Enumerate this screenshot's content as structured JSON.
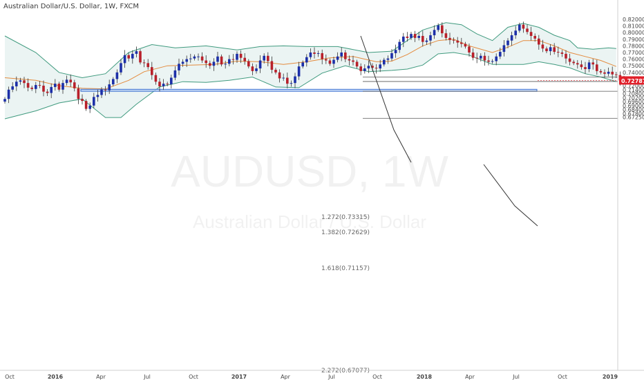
{
  "header": {
    "title": "Australian Dollar/U.S. Dollar, 1W, FXCM"
  },
  "watermark": {
    "symbol": "AUDUSD, 1W",
    "name": "Australian Dollar / U.S. Dollar"
  },
  "colors": {
    "bull": "#1c2fa8",
    "bear": "#b8202a",
    "band": "#3f9a7e",
    "band_fill": "#e8f2f1",
    "ma": "#e48a3c",
    "zone_fill": "#b9d2f4",
    "zone_stroke": "#3a6fd1",
    "price_tag": "#e0202a"
  },
  "price_axis": {
    "ticks": [
      "0.82000",
      "0.81000",
      "0.80000",
      "0.79000",
      "0.78000",
      "0.77000",
      "0.76000",
      "0.75000",
      "0.74000",
      "0.73000",
      "0.72000",
      "0.71400",
      "0.70800",
      "0.70200",
      "0.69600",
      "0.69000",
      "0.68400",
      "0.67800",
      "0.67250"
    ],
    "last_price": "0.72787"
  },
  "time_axis": {
    "labels": [
      "Oct",
      "2016",
      "Apr",
      "Jul",
      "Oct",
      "2017",
      "Apr",
      "Jul",
      "Oct",
      "2018",
      "Apr",
      "Jul",
      "Oct",
      "2019"
    ]
  },
  "fib_labels": {
    "l1272": "1.272(0.73315)",
    "l1382": "1.382(0.72629)",
    "l1618": "1.618(0.71157)",
    "l2272": "2.272(0.67077)"
  },
  "chart_data": {
    "type": "candlestick",
    "title": "Australian Dollar/U.S. Dollar, 1W, FXCM",
    "xlabel": "",
    "ylabel": "",
    "ylim": [
      0.6705,
      0.8245
    ],
    "x_range": [
      "2015-09-21",
      "2019-01-07"
    ],
    "x_ticks": [
      "Oct 2015",
      "2016",
      "Apr 2016",
      "Jul 2016",
      "Oct 2016",
      "2017",
      "Apr 2017",
      "Jul 2017",
      "Oct 2017",
      "2018",
      "Apr 2018",
      "Jul 2018",
      "Oct 2018",
      "2019"
    ],
    "close": [
      0.7,
      0.714,
      0.719,
      0.726,
      0.728,
      0.724,
      0.717,
      0.715,
      0.721,
      0.72,
      0.711,
      0.709,
      0.718,
      0.723,
      0.714,
      0.724,
      0.729,
      0.725,
      0.716,
      0.7,
      0.697,
      0.685,
      0.69,
      0.703,
      0.706,
      0.714,
      0.713,
      0.722,
      0.73,
      0.74,
      0.754,
      0.766,
      0.761,
      0.768,
      0.772,
      0.755,
      0.754,
      0.748,
      0.736,
      0.726,
      0.719,
      0.723,
      0.722,
      0.732,
      0.743,
      0.753,
      0.756,
      0.76,
      0.761,
      0.764,
      0.764,
      0.758,
      0.754,
      0.75,
      0.756,
      0.764,
      0.752,
      0.753,
      0.76,
      0.759,
      0.768,
      0.762,
      0.757,
      0.749,
      0.742,
      0.746,
      0.758,
      0.765,
      0.757,
      0.744,
      0.74,
      0.731,
      0.732,
      0.723,
      0.724,
      0.734,
      0.749,
      0.755,
      0.763,
      0.77,
      0.768,
      0.769,
      0.76,
      0.758,
      0.753,
      0.759,
      0.764,
      0.77,
      0.76,
      0.758,
      0.756,
      0.749,
      0.742,
      0.746,
      0.75,
      0.747,
      0.746,
      0.752,
      0.759,
      0.761,
      0.769,
      0.774,
      0.786,
      0.794,
      0.792,
      0.798,
      0.792,
      0.795,
      0.786,
      0.788,
      0.796,
      0.804,
      0.811,
      0.799,
      0.792,
      0.789,
      0.788,
      0.785,
      0.783,
      0.779,
      0.77,
      0.762,
      0.761,
      0.765,
      0.758,
      0.756,
      0.757,
      0.764,
      0.771,
      0.781,
      0.788,
      0.796,
      0.803,
      0.812,
      0.806,
      0.801,
      0.795,
      0.791,
      0.782,
      0.776,
      0.772,
      0.778,
      0.771,
      0.77,
      0.768,
      0.761,
      0.756,
      0.754,
      0.752,
      0.748,
      0.745,
      0.755,
      0.752,
      0.742,
      0.74,
      0.738,
      0.741,
      0.737,
      0.736,
      0.728,
      0.72787
    ],
    "series": [
      {
        "name": "Upper band",
        "points": [
          [
            0,
            0.795
          ],
          [
            8,
            0.77
          ],
          [
            14,
            0.74
          ],
          [
            20,
            0.732
          ],
          [
            26,
            0.738
          ],
          [
            32,
            0.77
          ],
          [
            38,
            0.782
          ],
          [
            44,
            0.777
          ],
          [
            52,
            0.78
          ],
          [
            60,
            0.774
          ],
          [
            66,
            0.779
          ],
          [
            72,
            0.78
          ],
          [
            78,
            0.779
          ],
          [
            86,
            0.779
          ],
          [
            94,
            0.77
          ],
          [
            100,
            0.772
          ],
          [
            104,
            0.788
          ],
          [
            108,
            0.804
          ],
          [
            114,
            0.815
          ],
          [
            118,
            0.812
          ],
          [
            122,
            0.798
          ],
          [
            126,
            0.788
          ],
          [
            130,
            0.808
          ],
          [
            134,
            0.814
          ],
          [
            138,
            0.808
          ],
          [
            142,
            0.796
          ],
          [
            146,
            0.788
          ],
          [
            148,
            0.777
          ],
          [
            152,
            0.775
          ],
          [
            156,
            0.777
          ],
          [
            158,
            0.776
          ]
        ]
      },
      {
        "name": "Middle band",
        "points": [
          [
            0,
            0.732
          ],
          [
            8,
            0.728
          ],
          [
            14,
            0.72
          ],
          [
            20,
            0.716
          ],
          [
            26,
            0.715
          ],
          [
            32,
            0.728
          ],
          [
            36,
            0.741
          ],
          [
            42,
            0.75
          ],
          [
            48,
            0.751
          ],
          [
            54,
            0.752
          ],
          [
            60,
            0.757
          ],
          [
            66,
            0.756
          ],
          [
            72,
            0.752
          ],
          [
            78,
            0.756
          ],
          [
            84,
            0.762
          ],
          [
            90,
            0.764
          ],
          [
            96,
            0.756
          ],
          [
            100,
            0.757
          ],
          [
            104,
            0.767
          ],
          [
            108,
            0.78
          ],
          [
            112,
            0.788
          ],
          [
            116,
            0.79
          ],
          [
            120,
            0.78
          ],
          [
            126,
            0.77
          ],
          [
            130,
            0.778
          ],
          [
            134,
            0.788
          ],
          [
            138,
            0.788
          ],
          [
            142,
            0.78
          ],
          [
            146,
            0.77
          ],
          [
            150,
            0.764
          ],
          [
            154,
            0.758
          ],
          [
            158,
            0.749
          ]
        ]
      },
      {
        "name": "Lower band",
        "points": [
          [
            0,
            0.67
          ],
          [
            8,
            0.682
          ],
          [
            14,
            0.694
          ],
          [
            20,
            0.7
          ],
          [
            26,
            0.672
          ],
          [
            30,
            0.672
          ],
          [
            34,
            0.692
          ],
          [
            40,
            0.718
          ],
          [
            46,
            0.726
          ],
          [
            52,
            0.725
          ],
          [
            58,
            0.728
          ],
          [
            64,
            0.733
          ],
          [
            70,
            0.718
          ],
          [
            76,
            0.717
          ],
          [
            82,
            0.739
          ],
          [
            88,
            0.75
          ],
          [
            94,
            0.741
          ],
          [
            100,
            0.743
          ],
          [
            104,
            0.745
          ],
          [
            108,
            0.751
          ],
          [
            112,
            0.768
          ],
          [
            116,
            0.77
          ],
          [
            120,
            0.766
          ],
          [
            126,
            0.752
          ],
          [
            130,
            0.752
          ],
          [
            134,
            0.752
          ],
          [
            138,
            0.756
          ],
          [
            142,
            0.752
          ],
          [
            146,
            0.747
          ],
          [
            150,
            0.738
          ],
          [
            154,
            0.733
          ],
          [
            158,
            0.726
          ]
        ]
      }
    ],
    "levels": [
      {
        "label": "1.272",
        "value": 0.73315
      },
      {
        "label": "1.382",
        "value": 0.72629
      },
      {
        "label": "1.618",
        "value": 0.71157
      },
      {
        "label": "2.272",
        "value": 0.67077
      }
    ],
    "zone": {
      "from_price": 0.7115,
      "to_price": 0.7145
    },
    "grid": false,
    "legend": "none"
  }
}
